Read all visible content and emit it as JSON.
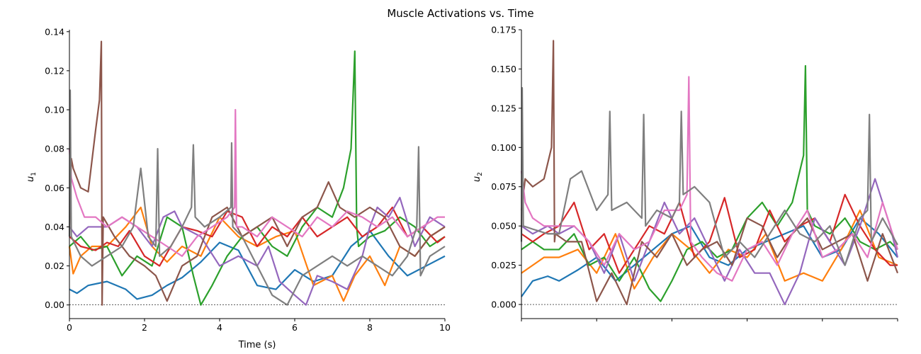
{
  "figure": {
    "title": "Muscle Activations vs. Time"
  },
  "series_colors": [
    "#1f77b4",
    "#ff7f0e",
    "#2ca02c",
    "#d62728",
    "#9467bd",
    "#8c564b",
    "#e377c2",
    "#7f7f7f"
  ],
  "chart_data": [
    {
      "type": "line",
      "xlabel": "Time (s)",
      "ylabel_base": "u",
      "ylabel_sub": "1",
      "xlim": [
        0,
        10
      ],
      "ylim": [
        -0.007,
        0.141
      ],
      "xticks": [
        0,
        2,
        4,
        6,
        8,
        10
      ],
      "xtick_labels": [
        "0",
        "2",
        "4",
        "6",
        "8",
        "10"
      ],
      "yticks": [
        0.0,
        0.02,
        0.04,
        0.06,
        0.08,
        0.1,
        0.12,
        0.14
      ],
      "ytick_labels": [
        "0.00",
        "0.02",
        "0.04",
        "0.06",
        "0.08",
        "0.10",
        "0.12",
        "0.14"
      ],
      "zero_line": 0,
      "grid": false,
      "legend": "none",
      "series": [
        {
          "x": [
            0,
            0.2,
            0.5,
            1.0,
            1.5,
            1.8,
            2.2,
            2.6,
            3.0,
            3.5,
            4.0,
            4.5,
            5.0,
            5.5,
            6.0,
            6.5,
            7.0,
            7.5,
            8.0,
            8.5,
            9.0,
            9.5,
            10.0
          ],
          "values": [
            0.008,
            0.006,
            0.01,
            0.012,
            0.008,
            0.003,
            0.005,
            0.01,
            0.014,
            0.022,
            0.032,
            0.028,
            0.01,
            0.008,
            0.018,
            0.012,
            0.015,
            0.03,
            0.038,
            0.025,
            0.015,
            0.02,
            0.025
          ]
        },
        {
          "x": [
            0,
            0.1,
            0.3,
            0.6,
            1.0,
            1.5,
            1.9,
            2.2,
            2.6,
            3.0,
            3.5,
            4.0,
            4.5,
            5.0,
            5.5,
            6.0,
            6.5,
            7.0,
            7.3,
            7.6,
            8.0,
            8.4,
            8.8,
            9.2,
            9.6,
            10.0
          ],
          "values": [
            0.03,
            0.016,
            0.025,
            0.03,
            0.03,
            0.04,
            0.05,
            0.03,
            0.022,
            0.03,
            0.025,
            0.045,
            0.035,
            0.03,
            0.035,
            0.038,
            0.01,
            0.015,
            0.002,
            0.015,
            0.025,
            0.01,
            0.03,
            0.025,
            0.035,
            0.04
          ]
        },
        {
          "x": [
            0,
            0.3,
            0.6,
            1.0,
            1.4,
            1.8,
            2.2,
            2.6,
            3.0,
            3.3,
            3.5,
            3.8,
            4.2,
            4.6,
            5.0,
            5.4,
            5.8,
            6.2,
            6.6,
            7.0,
            7.3,
            7.5,
            7.6,
            7.65,
            7.7,
            8.0,
            8.4,
            8.8,
            9.2,
            9.6,
            10.0
          ],
          "values": [
            0.03,
            0.035,
            0.028,
            0.03,
            0.015,
            0.025,
            0.02,
            0.045,
            0.04,
            0.015,
            0.0,
            0.01,
            0.025,
            0.035,
            0.04,
            0.03,
            0.025,
            0.04,
            0.05,
            0.045,
            0.06,
            0.08,
            0.13,
            0.04,
            0.03,
            0.035,
            0.038,
            0.045,
            0.04,
            0.03,
            0.035
          ]
        },
        {
          "x": [
            0,
            0.3,
            0.7,
            1.0,
            1.3,
            1.6,
            2.0,
            2.4,
            2.7,
            3.0,
            3.4,
            3.8,
            4.2,
            4.6,
            5.0,
            5.4,
            5.8,
            6.2,
            6.6,
            7.0,
            7.4,
            7.8,
            8.2,
            8.6,
            9.0,
            9.4,
            9.8,
            10.0
          ],
          "values": [
            0.035,
            0.03,
            0.028,
            0.032,
            0.03,
            0.038,
            0.025,
            0.02,
            0.03,
            0.04,
            0.038,
            0.035,
            0.048,
            0.045,
            0.03,
            0.04,
            0.035,
            0.045,
            0.035,
            0.04,
            0.045,
            0.035,
            0.04,
            0.05,
            0.035,
            0.04,
            0.032,
            0.035
          ]
        },
        {
          "x": [
            0,
            0.2,
            0.5,
            1.0,
            1.4,
            1.8,
            2.2,
            2.5,
            2.8,
            3.0,
            3.5,
            4.0,
            4.5,
            5.0,
            5.3,
            5.6,
            6.0,
            6.3,
            6.6,
            7.0,
            7.4,
            7.8,
            8.0,
            8.2,
            8.5,
            8.8,
            9.2,
            9.6,
            10.0
          ],
          "values": [
            0.04,
            0.035,
            0.04,
            0.04,
            0.045,
            0.04,
            0.03,
            0.045,
            0.048,
            0.04,
            0.035,
            0.02,
            0.025,
            0.02,
            0.03,
            0.012,
            0.005,
            0.0,
            0.015,
            0.012,
            0.008,
            0.025,
            0.04,
            0.05,
            0.045,
            0.055,
            0.03,
            0.045,
            0.04
          ]
        },
        {
          "x": [
            0,
            0.05,
            0.1,
            0.3,
            0.5,
            0.7,
            0.8,
            0.85,
            0.87,
            0.9,
            1.2,
            1.6,
            2.0,
            2.3,
            2.6,
            3.0,
            3.4,
            3.8,
            4.2,
            4.6,
            5.0,
            5.4,
            5.8,
            6.2,
            6.6,
            6.9,
            7.2,
            7.6,
            8.0,
            8.4,
            8.8,
            9.2,
            9.6,
            10.0
          ],
          "values": [
            0.04,
            0.075,
            0.07,
            0.06,
            0.058,
            0.09,
            0.105,
            0.135,
            0.0,
            0.045,
            0.035,
            0.025,
            0.02,
            0.015,
            0.002,
            0.02,
            0.025,
            0.045,
            0.05,
            0.035,
            0.04,
            0.045,
            0.03,
            0.045,
            0.05,
            0.063,
            0.05,
            0.045,
            0.05,
            0.045,
            0.03,
            0.025,
            0.035,
            0.04
          ]
        },
        {
          "x": [
            0,
            0.05,
            0.2,
            0.4,
            0.7,
            1.0,
            1.4,
            1.8,
            2.2,
            2.6,
            3.0,
            3.4,
            3.8,
            4.2,
            4.4,
            4.42,
            4.45,
            4.6,
            5.0,
            5.4,
            5.8,
            6.2,
            6.6,
            7.0,
            7.4,
            7.8,
            8.2,
            8.6,
            9.0,
            9.4,
            9.8,
            10.0
          ],
          "values": [
            0.08,
            0.065,
            0.055,
            0.045,
            0.045,
            0.04,
            0.045,
            0.04,
            0.035,
            0.03,
            0.025,
            0.035,
            0.04,
            0.045,
            0.05,
            0.1,
            0.04,
            0.04,
            0.035,
            0.045,
            0.04,
            0.035,
            0.045,
            0.04,
            0.048,
            0.045,
            0.04,
            0.045,
            0.035,
            0.04,
            0.045,
            0.045
          ]
        },
        {
          "x": [
            0,
            0.02,
            0.05,
            0.3,
            0.6,
            1.0,
            1.4,
            1.7,
            1.9,
            2.1,
            2.3,
            2.35,
            2.4,
            2.7,
            3.0,
            3.25,
            3.3,
            3.35,
            3.6,
            4.0,
            4.3,
            4.32,
            4.35,
            4.6,
            5.0,
            5.4,
            5.8,
            6.2,
            6.6,
            7.0,
            7.4,
            7.8,
            8.2,
            8.6,
            9.0,
            9.25,
            9.3,
            9.35,
            9.6,
            10.0
          ],
          "values": [
            0.035,
            0.11,
            0.035,
            0.025,
            0.02,
            0.025,
            0.03,
            0.04,
            0.07,
            0.035,
            0.03,
            0.08,
            0.025,
            0.03,
            0.04,
            0.05,
            0.082,
            0.045,
            0.04,
            0.045,
            0.05,
            0.083,
            0.04,
            0.035,
            0.02,
            0.005,
            0.0,
            0.015,
            0.02,
            0.025,
            0.02,
            0.025,
            0.02,
            0.015,
            0.025,
            0.04,
            0.081,
            0.015,
            0.025,
            0.03
          ]
        }
      ]
    },
    {
      "type": "line",
      "xlabel": "",
      "ylabel_base": "u",
      "ylabel_sub": "2",
      "xlim": [
        0,
        10
      ],
      "ylim": [
        -0.009,
        0.175
      ],
      "xticks": [
        0,
        2,
        4,
        6,
        8,
        10
      ],
      "xtick_labels": [],
      "yticks": [
        0.0,
        0.025,
        0.05,
        0.075,
        0.1,
        0.125,
        0.15,
        0.175
      ],
      "ytick_labels": [
        "0.000",
        "0.025",
        "0.050",
        "0.075",
        "0.100",
        "0.125",
        "0.150",
        "0.175"
      ],
      "zero_line": 0,
      "grid": false,
      "legend": "none",
      "series": [
        {
          "x": [
            0,
            0.3,
            0.7,
            1.0,
            1.5,
            2.0,
            2.5,
            3.0,
            3.5,
            4.0,
            4.5,
            5.0,
            5.5,
            6.0,
            6.5,
            7.0,
            7.5,
            8.0,
            8.5,
            9.0,
            9.5,
            10.0
          ],
          "values": [
            0.005,
            0.015,
            0.018,
            0.015,
            0.022,
            0.03,
            0.015,
            0.025,
            0.035,
            0.045,
            0.05,
            0.03,
            0.025,
            0.035,
            0.04,
            0.045,
            0.05,
            0.03,
            0.035,
            0.055,
            0.045,
            0.03
          ]
        },
        {
          "x": [
            0,
            0.3,
            0.6,
            1.0,
            1.5,
            2.0,
            2.5,
            3.0,
            3.5,
            4.0,
            4.5,
            5.0,
            5.5,
            6.0,
            6.5,
            7.0,
            7.5,
            8.0,
            8.5,
            9.0,
            9.5,
            10.0
          ],
          "values": [
            0.02,
            0.025,
            0.03,
            0.03,
            0.035,
            0.02,
            0.045,
            0.01,
            0.03,
            0.045,
            0.035,
            0.02,
            0.035,
            0.03,
            0.045,
            0.015,
            0.02,
            0.015,
            0.035,
            0.06,
            0.03,
            0.025
          ]
        },
        {
          "x": [
            0,
            0.3,
            0.6,
            1.0,
            1.4,
            1.8,
            2.2,
            2.6,
            3.0,
            3.4,
            3.7,
            4.0,
            4.4,
            4.8,
            5.2,
            5.6,
            6.0,
            6.4,
            6.8,
            7.2,
            7.5,
            7.55,
            7.6,
            7.8,
            8.2,
            8.6,
            9.0,
            9.4,
            9.8,
            10.0
          ],
          "values": [
            0.035,
            0.04,
            0.035,
            0.035,
            0.045,
            0.025,
            0.03,
            0.015,
            0.03,
            0.01,
            0.002,
            0.015,
            0.035,
            0.04,
            0.03,
            0.035,
            0.055,
            0.065,
            0.05,
            0.065,
            0.095,
            0.152,
            0.06,
            0.05,
            0.045,
            0.055,
            0.04,
            0.035,
            0.04,
            0.035
          ]
        },
        {
          "x": [
            0,
            0.3,
            0.6,
            1.0,
            1.4,
            1.8,
            2.2,
            2.6,
            3.0,
            3.4,
            3.8,
            4.2,
            4.6,
            5.0,
            5.4,
            5.8,
            6.2,
            6.6,
            7.0,
            7.4,
            7.8,
            8.2,
            8.6,
            9.0,
            9.4,
            9.8,
            10.0
          ],
          "values": [
            0.045,
            0.04,
            0.045,
            0.05,
            0.065,
            0.035,
            0.045,
            0.02,
            0.035,
            0.05,
            0.045,
            0.065,
            0.03,
            0.04,
            0.068,
            0.03,
            0.035,
            0.06,
            0.04,
            0.05,
            0.055,
            0.04,
            0.07,
            0.05,
            0.035,
            0.025,
            0.025
          ]
        },
        {
          "x": [
            0,
            0.3,
            0.7,
            1.0,
            1.4,
            1.8,
            2.2,
            2.6,
            3.0,
            3.4,
            3.8,
            4.2,
            4.6,
            5.0,
            5.4,
            5.8,
            6.2,
            6.6,
            7.0,
            7.4,
            7.8,
            8.2,
            8.6,
            9.0,
            9.4,
            9.8,
            10.0
          ],
          "values": [
            0.05,
            0.045,
            0.05,
            0.045,
            0.05,
            0.04,
            0.02,
            0.045,
            0.015,
            0.04,
            0.065,
            0.045,
            0.055,
            0.035,
            0.015,
            0.035,
            0.02,
            0.02,
            0.0,
            0.02,
            0.055,
            0.04,
            0.025,
            0.05,
            0.08,
            0.05,
            0.03
          ]
        },
        {
          "x": [
            0,
            0.1,
            0.3,
            0.6,
            0.8,
            0.85,
            0.88,
            0.9,
            1.2,
            1.6,
            2.0,
            2.4,
            2.8,
            3.2,
            3.6,
            4.0,
            4.4,
            4.8,
            5.2,
            5.6,
            6.0,
            6.4,
            6.8,
            7.2,
            7.6,
            8.0,
            8.4,
            8.8,
            9.2,
            9.6,
            10.0
          ],
          "values": [
            0.06,
            0.08,
            0.075,
            0.08,
            0.1,
            0.168,
            0.04,
            0.045,
            0.04,
            0.04,
            0.002,
            0.02,
            0.0,
            0.04,
            0.03,
            0.045,
            0.025,
            0.035,
            0.04,
            0.025,
            0.055,
            0.05,
            0.03,
            0.045,
            0.055,
            0.035,
            0.04,
            0.045,
            0.015,
            0.045,
            0.02
          ]
        },
        {
          "x": [
            0,
            0.1,
            0.3,
            0.6,
            1.0,
            1.4,
            1.8,
            2.2,
            2.6,
            3.0,
            3.4,
            3.8,
            4.2,
            4.4,
            4.45,
            4.5,
            4.8,
            5.2,
            5.6,
            6.0,
            6.4,
            6.8,
            7.2,
            7.6,
            8.0,
            8.4,
            8.8,
            9.2,
            9.6,
            10.0
          ],
          "values": [
            0.085,
            0.065,
            0.055,
            0.05,
            0.05,
            0.05,
            0.04,
            0.025,
            0.045,
            0.035,
            0.04,
            0.06,
            0.06,
            0.07,
            0.145,
            0.04,
            0.03,
            0.02,
            0.015,
            0.035,
            0.04,
            0.025,
            0.045,
            0.06,
            0.03,
            0.035,
            0.045,
            0.03,
            0.065,
            0.035
          ]
        },
        {
          "x": [
            0,
            0.02,
            0.05,
            0.3,
            0.7,
            1.0,
            1.3,
            1.6,
            2.0,
            2.3,
            2.35,
            2.4,
            2.8,
            3.2,
            3.25,
            3.3,
            3.6,
            4.0,
            4.2,
            4.25,
            4.3,
            4.6,
            5.0,
            5.4,
            5.8,
            6.2,
            6.6,
            7.0,
            7.4,
            7.8,
            8.2,
            8.6,
            9.0,
            9.2,
            9.25,
            9.3,
            9.6,
            10.0
          ],
          "values": [
            0.04,
            0.138,
            0.05,
            0.048,
            0.045,
            0.045,
            0.08,
            0.085,
            0.06,
            0.07,
            0.123,
            0.06,
            0.065,
            0.055,
            0.121,
            0.05,
            0.06,
            0.055,
            0.065,
            0.123,
            0.07,
            0.075,
            0.065,
            0.03,
            0.04,
            0.03,
            0.045,
            0.06,
            0.045,
            0.04,
            0.05,
            0.025,
            0.055,
            0.06,
            0.121,
            0.04,
            0.055,
            0.038
          ]
        }
      ]
    }
  ]
}
